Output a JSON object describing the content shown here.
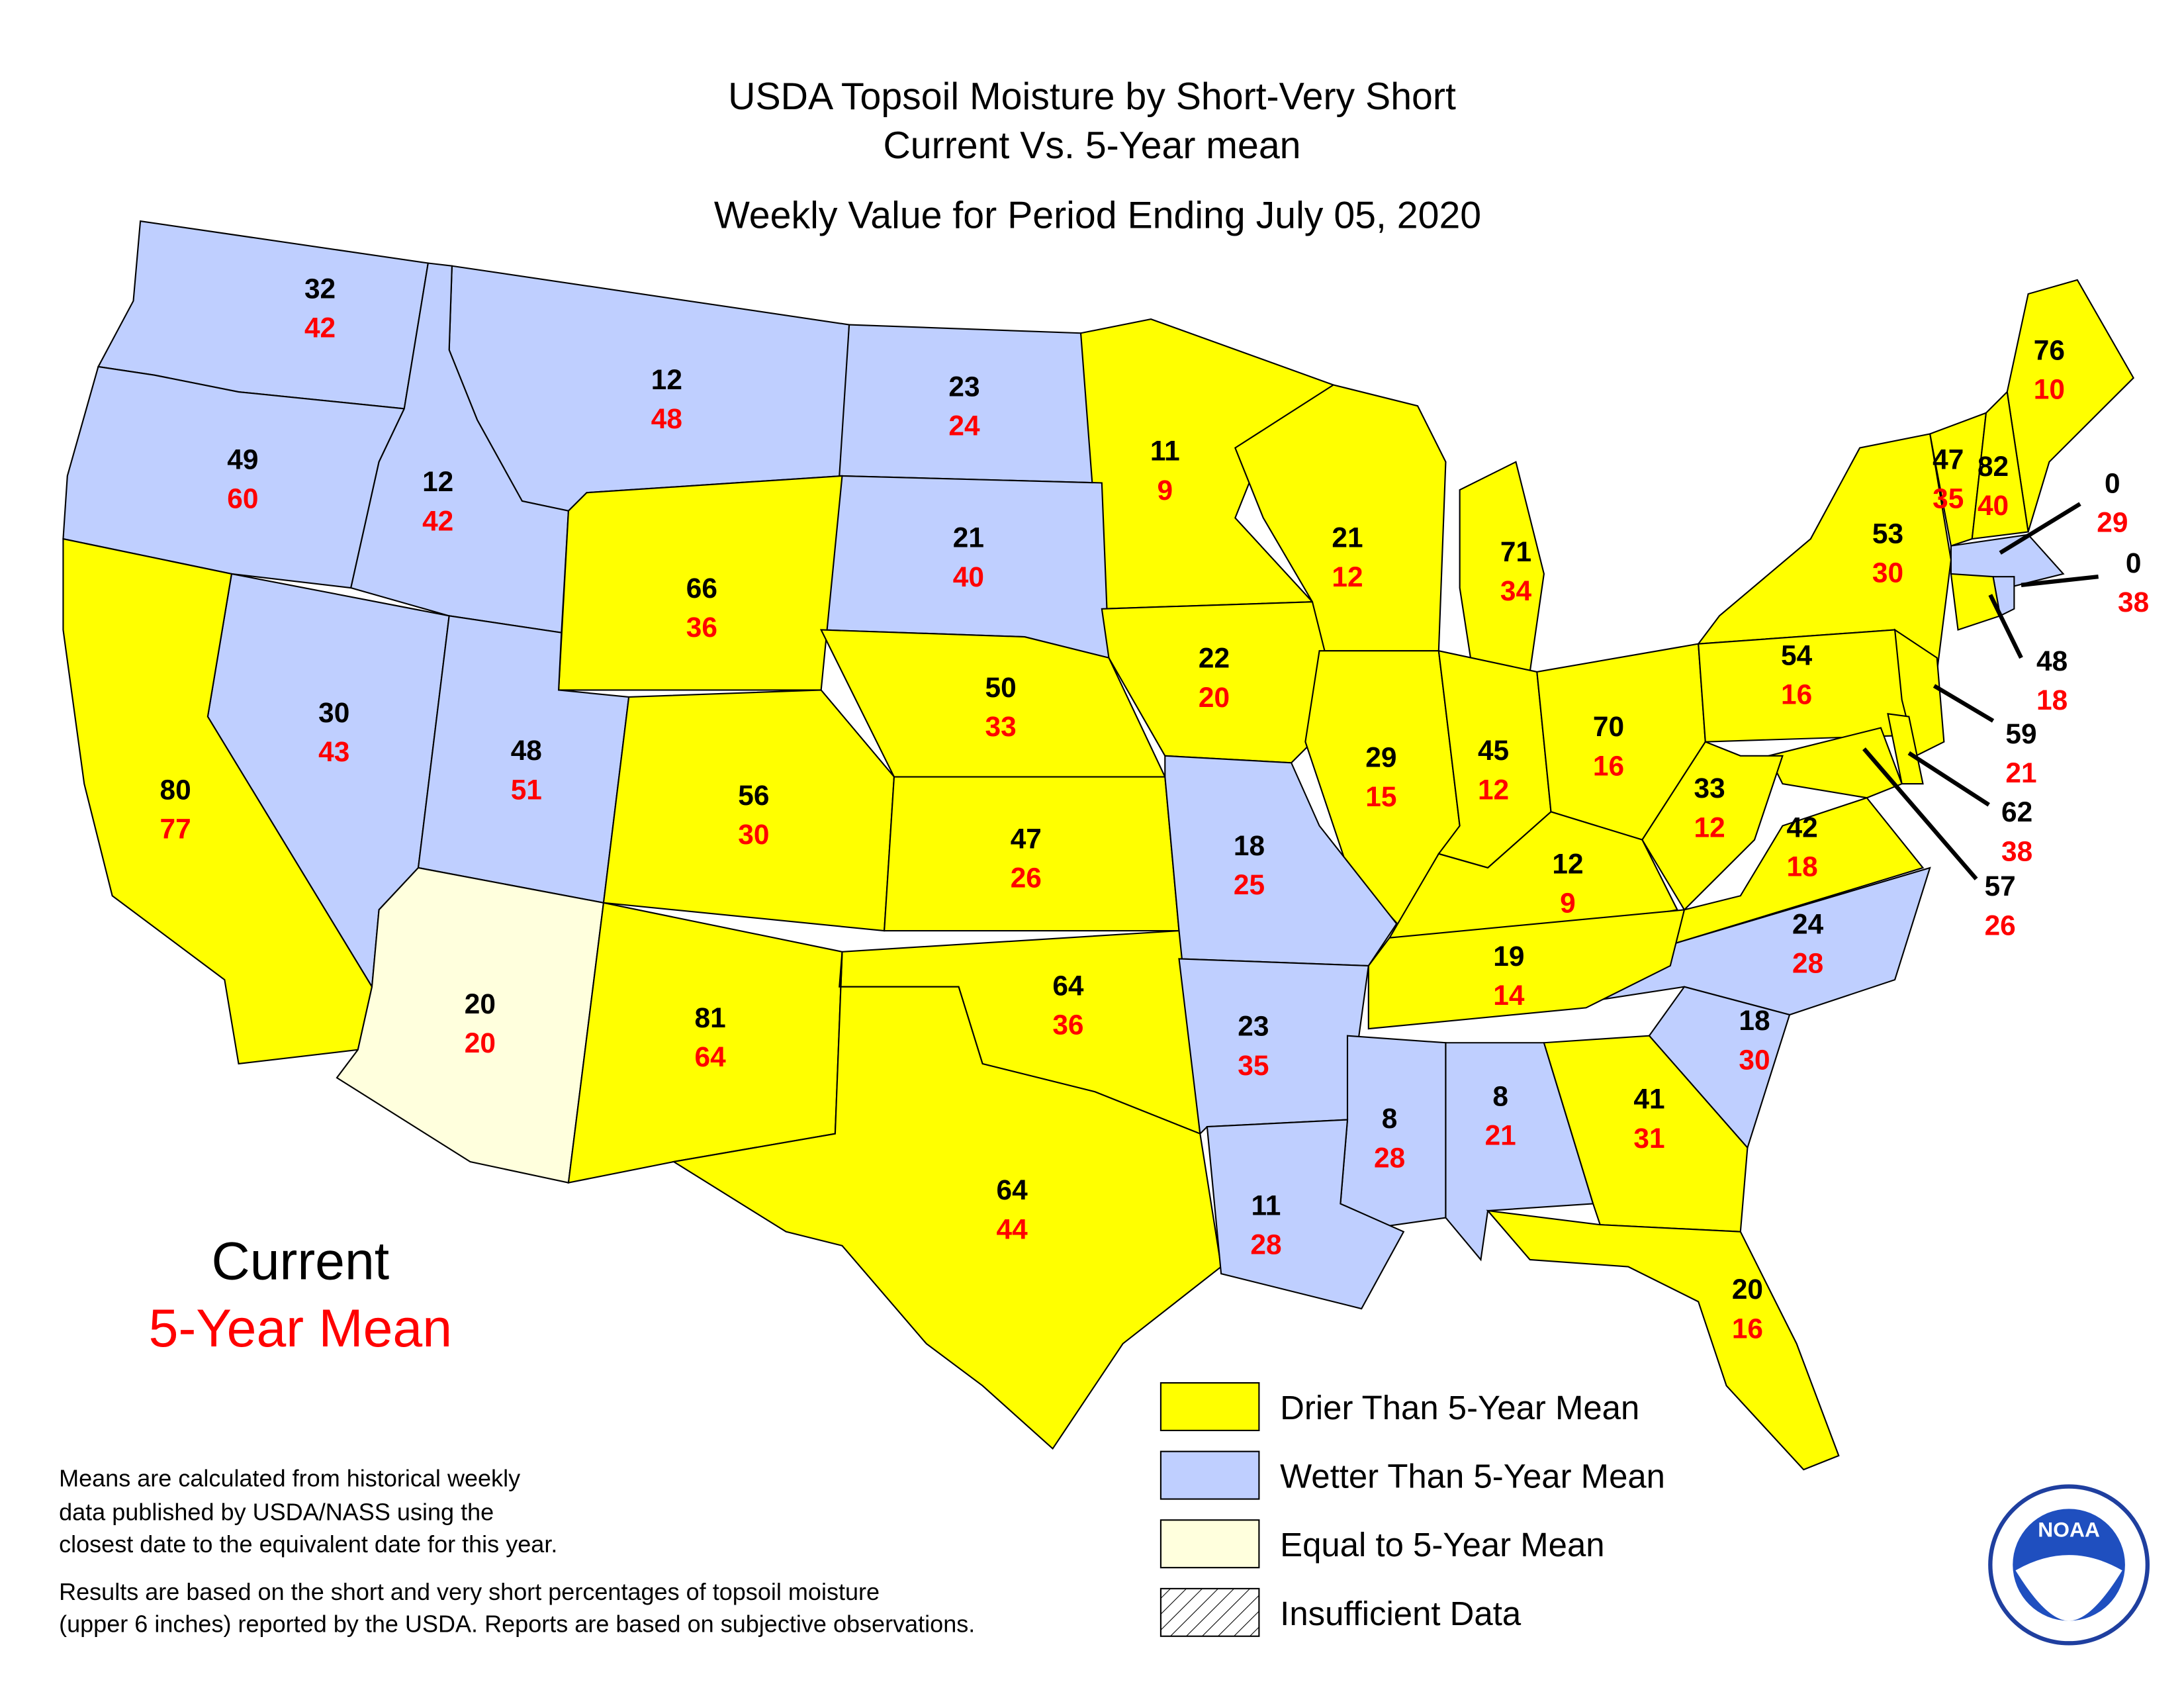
{
  "title": [
    "USDA Topsoil Moisture by Short-Very Short",
    "Current Vs. 5-Year mean",
    "Weekly Value for Period Ending July 05, 2020"
  ],
  "key": {
    "current": "Current",
    "mean": "5-Year Mean",
    "current_color": "#000000",
    "mean_color": "#ff0000"
  },
  "states": [
    {
      "current": 32,
      "mean": 42,
      "color": "#bfcfff"
    },
    {
      "current": 12,
      "mean": 48,
      "color": "#bfcfff"
    },
    {
      "current": 23,
      "mean": 24,
      "color": "#bfcfff"
    },
    {
      "current": 11,
      "mean": 9,
      "color": "#ffff00"
    },
    {
      "current": 49,
      "mean": 60,
      "color": "#bfcfff"
    },
    {
      "current": 12,
      "mean": 42,
      "color": "#bfcfff"
    },
    {
      "current": 21,
      "mean": 40,
      "color": "#bfcfff"
    },
    {
      "current": 66,
      "mean": 36,
      "color": "#ffff00"
    },
    {
      "current": 21,
      "mean": 12,
      "color": "#ffff00"
    },
    {
      "current": 71,
      "mean": 34,
      "color": "#ffff00"
    },
    {
      "current": 76,
      "mean": 10,
      "color": "#ffff00"
    },
    {
      "current": 47,
      "mean": 35,
      "color": "#ffff00"
    },
    {
      "current": 82,
      "mean": 40,
      "color": "#ffff00"
    },
    {
      "current": 0,
      "mean": 29,
      "color": "#bfcfff"
    },
    {
      "current": 0,
      "mean": 38,
      "color": "#bfcfff"
    },
    {
      "current": 53,
      "mean": 30,
      "color": "#ffff00"
    },
    {
      "current": 48,
      "mean": 18,
      "color": "#ffff00"
    },
    {
      "current": 22,
      "mean": 20,
      "color": "#ffff00"
    },
    {
      "current": 50,
      "mean": 33,
      "color": "#ffff00"
    },
    {
      "current": 30,
      "mean": 43,
      "color": "#bfcfff"
    },
    {
      "current": 48,
      "mean": 51,
      "color": "#bfcfff"
    },
    {
      "current": 56,
      "mean": 30,
      "color": "#ffff00"
    },
    {
      "current": 29,
      "mean": 15,
      "color": "#ffff00"
    },
    {
      "current": 45,
      "mean": 12,
      "color": "#ffff00"
    },
    {
      "current": 70,
      "mean": 16,
      "color": "#ffff00"
    },
    {
      "current": 54,
      "mean": 16,
      "color": "#ffff00"
    },
    {
      "current": 59,
      "mean": 21,
      "color": "#ffff00"
    },
    {
      "current": 62,
      "mean": 38,
      "color": "#ffff00"
    },
    {
      "current": 57,
      "mean": 26,
      "color": "#ffff00"
    },
    {
      "current": 80,
      "mean": 77,
      "color": "#ffff00"
    },
    {
      "current": 47,
      "mean": 26,
      "color": "#ffff00"
    },
    {
      "current": 18,
      "mean": 25,
      "color": "#bfcfff"
    },
    {
      "current": 33,
      "mean": 12,
      "color": "#ffff00"
    },
    {
      "current": 42,
      "mean": 18,
      "color": "#ffff00"
    },
    {
      "current": 12,
      "mean": 9,
      "color": "#ffff00"
    },
    {
      "current": 24,
      "mean": 28,
      "color": "#bfcfff"
    },
    {
      "current": 19,
      "mean": 14,
      "color": "#ffff00"
    },
    {
      "current": 64,
      "mean": 36,
      "color": "#ffff00"
    },
    {
      "current": 20,
      "mean": 20,
      "color": "#ffffdd"
    },
    {
      "current": 81,
      "mean": 64,
      "color": "#ffff00"
    },
    {
      "current": 23,
      "mean": 35,
      "color": "#bfcfff"
    },
    {
      "current": 18,
      "mean": 30,
      "color": "#bfcfff"
    },
    {
      "current": 8,
      "mean": 28,
      "color": "#bfcfff"
    },
    {
      "current": 8,
      "mean": 21,
      "color": "#bfcfff"
    },
    {
      "current": 41,
      "mean": 31,
      "color": "#ffff00"
    },
    {
      "current": 64,
      "mean": 44,
      "color": "#ffff00"
    },
    {
      "current": 11,
      "mean": 28,
      "color": "#bfcfff"
    },
    {
      "current": 20,
      "mean": 16,
      "color": "#ffff00"
    }
  ],
  "legend": [
    {
      "label": "Drier Than 5-Year Mean",
      "color": "#ffff00"
    },
    {
      "label": "Wetter Than 5-Year Mean",
      "color": "#bfcfff"
    },
    {
      "label": "Equal to 5-Year Mean",
      "color": "#ffffdd"
    },
    {
      "label": "Insufficient Data",
      "color": "hatch"
    }
  ],
  "notes": [
    [
      "Means are calculated from historical weekly",
      "data published by USDA/NASS using the",
      "closest date to the equivalent date for this year."
    ],
    [
      "Results are based on the short and very short percentages of topsoil moisture",
      "(upper 6 inches) reported by the USDA. Reports are based on subjective observations."
    ]
  ],
  "logo": "NOAA"
}
